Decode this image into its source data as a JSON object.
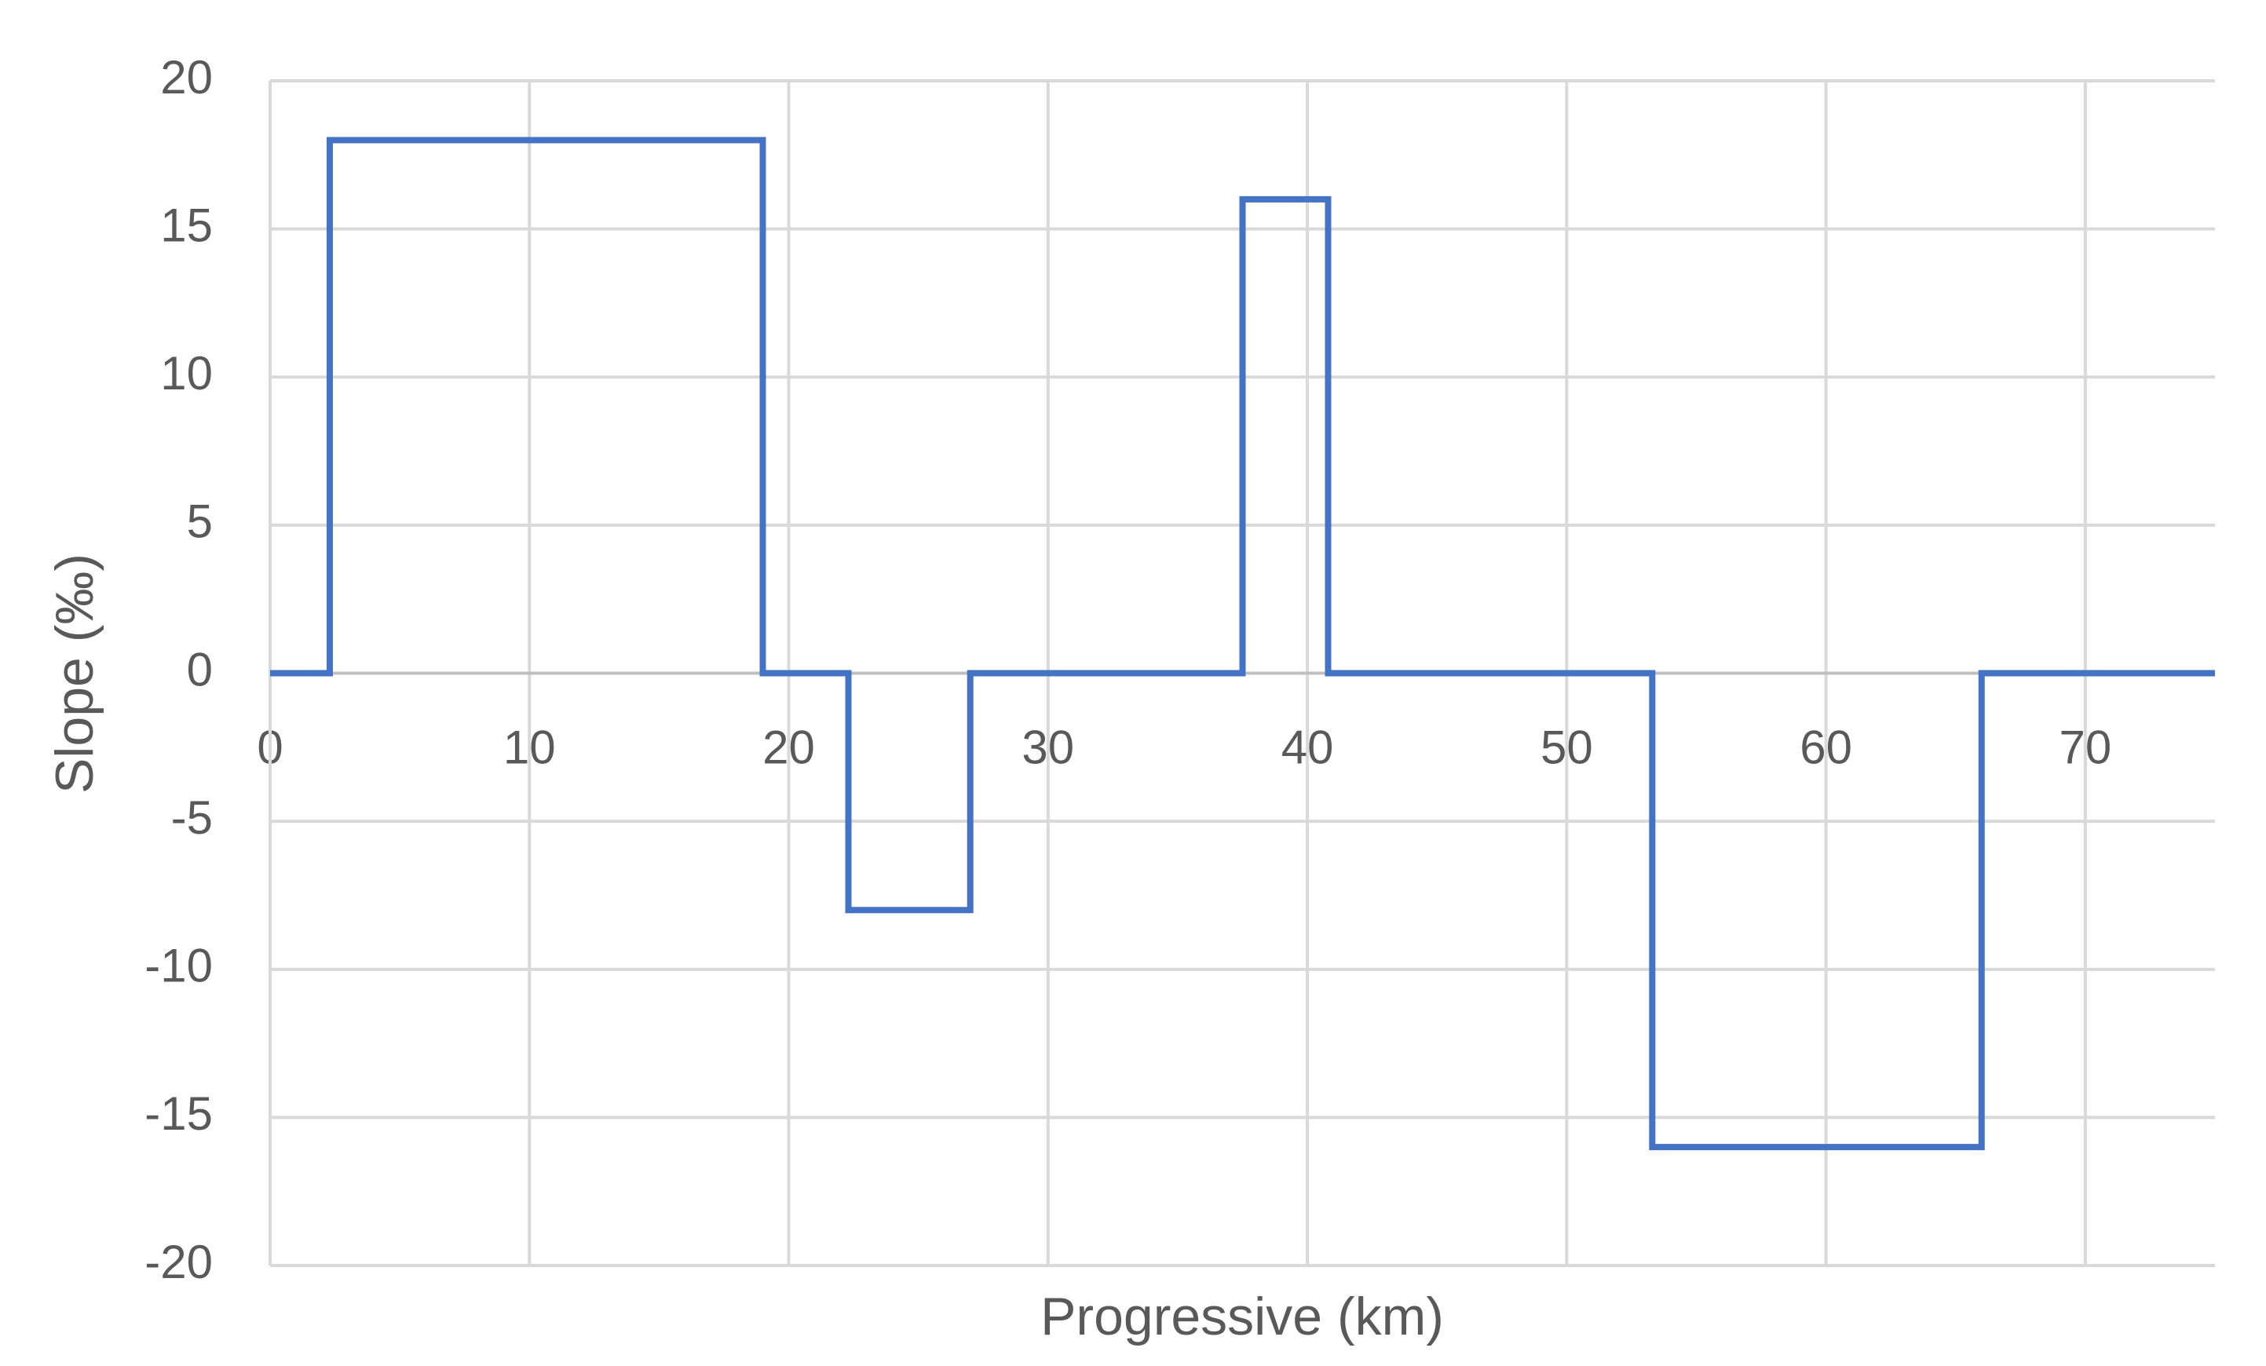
{
  "chart_data": {
    "type": "line",
    "x_label": "Progressive (km)",
    "y_label": "Slope (‰)",
    "x": [
      0,
      2.3,
      2.3,
      19,
      19,
      22.3,
      22.3,
      27,
      27,
      37.5,
      37.5,
      40.8,
      40.8,
      53.3,
      53.3,
      66,
      66,
      75
    ],
    "values": [
      0,
      0,
      18,
      18,
      0,
      0,
      -8,
      -8,
      0,
      0,
      16,
      16,
      0,
      0,
      -16,
      -16,
      0,
      0
    ],
    "color": "#4472c4",
    "xlim": [
      0,
      75
    ],
    "xticks": [
      0,
      10,
      20,
      30,
      40,
      50,
      60,
      70
    ],
    "ylim": [
      -20,
      20
    ],
    "yticks": [
      -20,
      -15,
      -10,
      -5,
      0,
      5,
      10,
      15,
      20
    ],
    "grid": true
  }
}
